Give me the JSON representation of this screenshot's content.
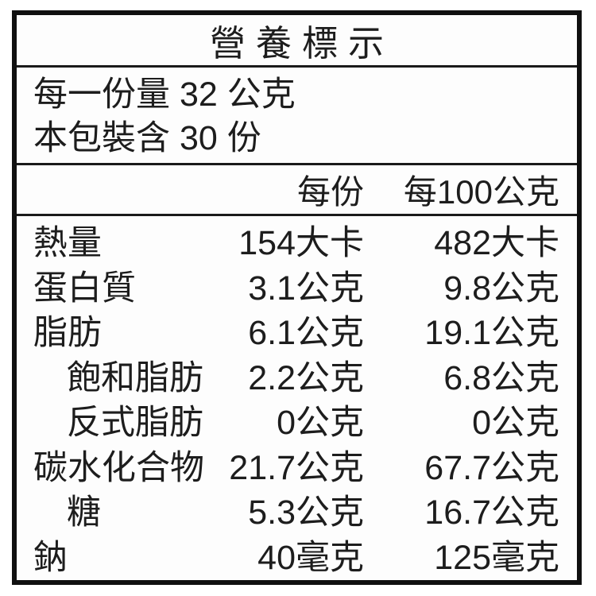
{
  "label": {
    "title": "營養標示",
    "serving": {
      "serving_size_line": "每一份量 32 公克",
      "servings_per_package_line": "本包裝含 30 份"
    },
    "columns": {
      "per_serving": "每份",
      "per_100g": "每100公克"
    },
    "rows": [
      {
        "name": "熱量",
        "indent": false,
        "per_serving": "154大卡",
        "per_100g": "482大卡"
      },
      {
        "name": "蛋白質",
        "indent": false,
        "per_serving": "3.1公克",
        "per_100g": "9.8公克"
      },
      {
        "name": "脂肪",
        "indent": false,
        "per_serving": "6.1公克",
        "per_100g": "19.1公克"
      },
      {
        "name": "飽和脂肪",
        "indent": true,
        "per_serving": "2.2公克",
        "per_100g": "6.8公克"
      },
      {
        "name": "反式脂肪",
        "indent": true,
        "per_serving": "0公克",
        "per_100g": "0公克"
      },
      {
        "name": "碳水化合物",
        "indent": false,
        "per_serving": "21.7公克",
        "per_100g": "67.7公克"
      },
      {
        "name": "糖",
        "indent": true,
        "per_serving": "5.3公克",
        "per_100g": "16.7公克"
      },
      {
        "name": "鈉",
        "indent": false,
        "per_serving": "40毫克",
        "per_100g": "125毫克"
      }
    ],
    "colors": {
      "text": "#1d1d1d",
      "border": "#101010",
      "divider": "#1a1a1a",
      "background": "#fdfdfd"
    }
  }
}
